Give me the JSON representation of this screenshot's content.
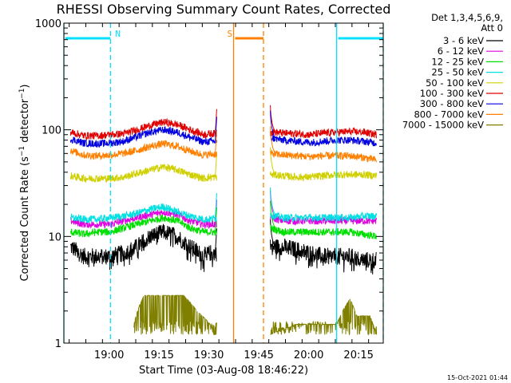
{
  "chart_data": {
    "type": "line",
    "title": "RHESSI Observing Summary Count Rates, Corrected",
    "xlabel": "Start Time (03-Aug-08 18:46:22)",
    "ylabel": "Corrected Count Rate (s⁻¹ detector⁻¹)",
    "yscale": "log",
    "ylim": [
      1,
      1000
    ],
    "xlim_minutes": [
      0,
      96
    ],
    "x_ticks": [
      {
        "minute": 13.6,
        "label": "19:00"
      },
      {
        "minute": 28.6,
        "label": "19:15"
      },
      {
        "minute": 43.6,
        "label": "19:30"
      },
      {
        "minute": 58.6,
        "label": "19:45"
      },
      {
        "minute": 73.6,
        "label": "20:00"
      },
      {
        "minute": 88.6,
        "label": "20:15"
      }
    ],
    "y_ticks": [
      {
        "value": 1,
        "label": "1"
      },
      {
        "value": 10,
        "label": "10"
      },
      {
        "value": 100,
        "label": "100"
      },
      {
        "value": 1000,
        "label": "1000"
      }
    ],
    "legend_header": [
      "Det 1,3,4,5,6,9,",
      "Att 0"
    ],
    "legend_position": "right",
    "series": [
      {
        "name": "3 - 6 keV",
        "color": "#000000",
        "x": [
          2,
          6,
          10,
          14,
          18,
          22,
          26,
          30,
          34,
          38,
          42,
          44,
          46,
          62,
          66,
          70,
          74,
          78,
          82,
          86,
          90,
          94
        ],
        "y": [
          8,
          6.5,
          6.5,
          6.5,
          7,
          8,
          10,
          11,
          10,
          8,
          6.5,
          7,
          7,
          8,
          8,
          7.5,
          7,
          6.5,
          6.5,
          6.5,
          6,
          6
        ]
      },
      {
        "name": "6 - 12 keV",
        "color": "#e000e0",
        "x": [
          2,
          6,
          10,
          14,
          18,
          22,
          26,
          30,
          34,
          38,
          42,
          44,
          46,
          62,
          66,
          70,
          74,
          78,
          82,
          86,
          90,
          94
        ],
        "y": [
          14,
          13,
          13,
          13,
          14,
          15,
          16,
          17,
          16,
          14,
          13,
          13,
          13,
          15,
          14,
          14,
          14,
          14,
          14,
          14,
          14,
          14
        ]
      },
      {
        "name": "12 - 25 keV",
        "color": "#00e000",
        "x": [
          2,
          6,
          10,
          14,
          18,
          22,
          26,
          30,
          34,
          38,
          42,
          44,
          46,
          62,
          66,
          70,
          74,
          78,
          82,
          86,
          90,
          94
        ],
        "y": [
          11,
          10.5,
          11,
          11,
          12,
          13,
          14,
          15,
          14,
          12,
          11,
          11,
          11,
          12,
          11,
          11,
          11,
          11,
          11,
          11,
          10.5,
          10
        ]
      },
      {
        "name": "25 - 50 keV",
        "color": "#00e0e0",
        "x": [
          2,
          6,
          10,
          14,
          18,
          22,
          26,
          30,
          34,
          38,
          42,
          44,
          46,
          62,
          66,
          70,
          74,
          78,
          82,
          86,
          90,
          94
        ],
        "y": [
          15,
          14.5,
          14.5,
          15,
          15.5,
          16.5,
          18,
          19,
          17,
          15.5,
          14.5,
          14.5,
          15,
          16,
          15,
          15,
          15,
          15,
          15,
          15,
          15.5,
          15.5
        ]
      },
      {
        "name": "50 - 100 keV",
        "color": "#d0d000",
        "x": [
          2,
          6,
          10,
          14,
          18,
          22,
          26,
          30,
          34,
          38,
          42,
          44,
          46,
          62,
          66,
          70,
          74,
          78,
          82,
          86,
          90,
          94
        ],
        "y": [
          37,
          35,
          35,
          35,
          36,
          39,
          42,
          45,
          42,
          38,
          35,
          36,
          36,
          38,
          37,
          36,
          36,
          37,
          38,
          38,
          38,
          37
        ]
      },
      {
        "name": "100 - 300 keV",
        "color": "#e00000",
        "x": [
          2,
          6,
          10,
          14,
          18,
          22,
          26,
          30,
          34,
          38,
          42,
          44,
          46,
          62,
          66,
          70,
          74,
          78,
          82,
          86,
          90,
          94
        ],
        "y": [
          95,
          88,
          88,
          90,
          92,
          100,
          110,
          118,
          112,
          100,
          90,
          92,
          92,
          96,
          93,
          92,
          90,
          93,
          95,
          96,
          95,
          90
        ]
      },
      {
        "name": "300 - 800 keV",
        "color": "#0000e0",
        "x": [
          2,
          6,
          10,
          14,
          18,
          22,
          26,
          30,
          34,
          38,
          42,
          44,
          46,
          62,
          66,
          70,
          74,
          78,
          82,
          86,
          90,
          94
        ],
        "y": [
          82,
          75,
          74,
          75,
          78,
          86,
          95,
          100,
          95,
          85,
          77,
          78,
          78,
          84,
          80,
          78,
          76,
          78,
          80,
          80,
          78,
          75
        ]
      },
      {
        "name": "800 - 7000 keV",
        "color": "#ff8000",
        "x": [
          2,
          6,
          10,
          14,
          18,
          22,
          26,
          30,
          34,
          38,
          42,
          44,
          46,
          62,
          66,
          70,
          74,
          78,
          82,
          86,
          90,
          94
        ],
        "y": [
          64,
          58,
          57,
          58,
          60,
          64,
          70,
          74,
          70,
          63,
          58,
          59,
          59,
          60,
          58,
          57,
          56,
          57,
          57,
          57,
          55,
          52
        ]
      },
      {
        "name": "7000 - 15000 keV",
        "color": "#808000",
        "x": [
          21,
          24,
          28,
          32,
          36,
          40,
          44,
          45,
          62,
          70,
          78,
          82,
          86,
          88,
          92,
          94
        ],
        "y": [
          1.5,
          2.8,
          2.8,
          2.8,
          2.8,
          2.0,
          1.5,
          1.2,
          1.2,
          1.5,
          1.5,
          1.5,
          2.6,
          1.8,
          1.8,
          1.2
        ]
      }
    ],
    "flag_bars": [
      {
        "label": "N",
        "color": "#00e0ff",
        "style": "solid",
        "start_minute": 0,
        "end_minute": 14
      },
      {
        "label": "",
        "color": "#00e0ff",
        "style": "solid",
        "start_minute": 82,
        "end_minute": 96
      },
      {
        "label": "S",
        "color": "#ff8000",
        "style": "solid",
        "start_minute": 51,
        "end_minute": 60
      }
    ],
    "region_markers": [
      {
        "minute": 0,
        "color": "#00e0ff",
        "style": "solid"
      },
      {
        "minute": 14,
        "color": "#00e0ff",
        "style": "dashed"
      },
      {
        "minute": 82,
        "color": "#00e0ff",
        "style": "solid"
      },
      {
        "minute": 96,
        "color": "#00e0ff",
        "style": "dashed"
      },
      {
        "minute": 51,
        "color": "#ff8000",
        "style": "solid"
      },
      {
        "minute": 60,
        "color": "#ff8000",
        "style": "dashed"
      }
    ]
  },
  "footer_timestamp": "15-Oct-2021 01:44"
}
